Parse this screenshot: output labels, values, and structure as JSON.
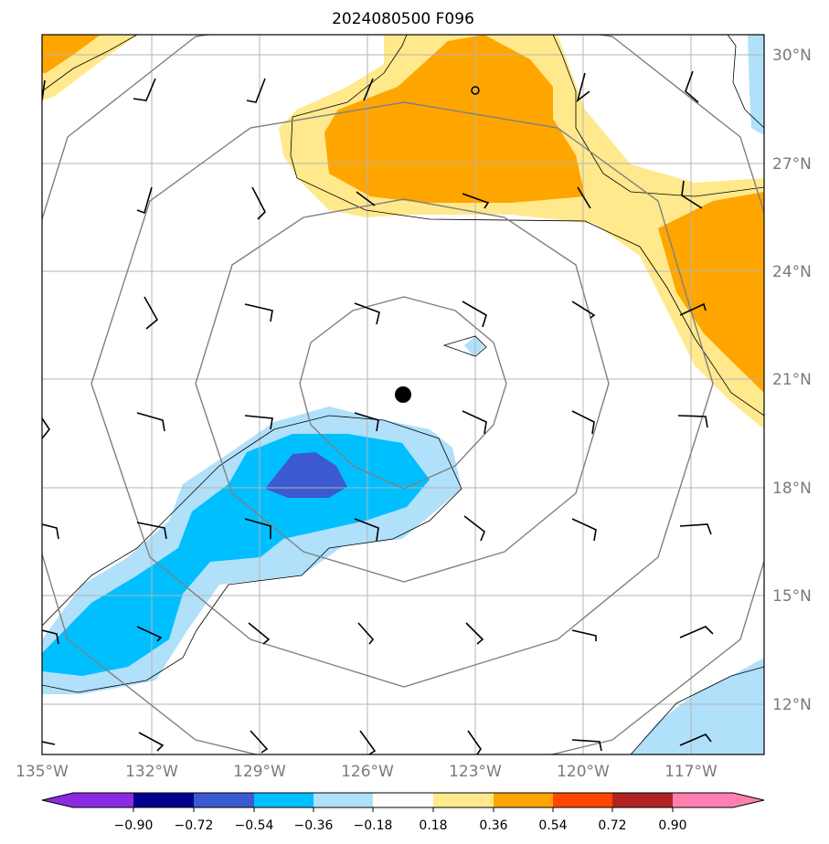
{
  "title": "2024080500 F096",
  "colors": {
    "neg090": "#8a2be2",
    "neg072": "#00008b",
    "neg054": "#3c5ad0",
    "neg036": "#00bfff",
    "neg018": "#b0e0fa",
    "zero": "#ffffff",
    "pos018": "#ffe98c",
    "pos036": "#ffa500",
    "pos054": "#ff4500",
    "pos072": "#b22222",
    "pos090": "#ff80b0",
    "grid": "#b4b4b4",
    "ring": "#808080",
    "coast": "#000000"
  },
  "axes": {
    "lon_labels": [
      "135°W",
      "132°W",
      "129°W",
      "126°W",
      "123°W",
      "120°W",
      "117°W"
    ],
    "lat_labels": [
      "30°N",
      "27°N",
      "24°N",
      "21°N",
      "18°N",
      "15°N",
      "12°N"
    ]
  },
  "colorbar": {
    "tick_labels": [
      "−0.90",
      "−0.72",
      "−0.54",
      "−0.36",
      "−0.18",
      "0.18",
      "0.36",
      "0.54",
      "0.72",
      "0.90"
    ]
  },
  "chart_data": {
    "type": "map",
    "title": "2024080500 F096",
    "lon_range": [
      -135,
      -115
    ],
    "lat_range": [
      10.5,
      30.5
    ],
    "center_marker": {
      "lon": -125.0,
      "lat": 20.6
    },
    "range_rings": 4,
    "contour_levels": [
      -0.9,
      -0.72,
      -0.54,
      -0.36,
      -0.18,
      0.18,
      0.36,
      0.54,
      0.72,
      0.9
    ]
  }
}
